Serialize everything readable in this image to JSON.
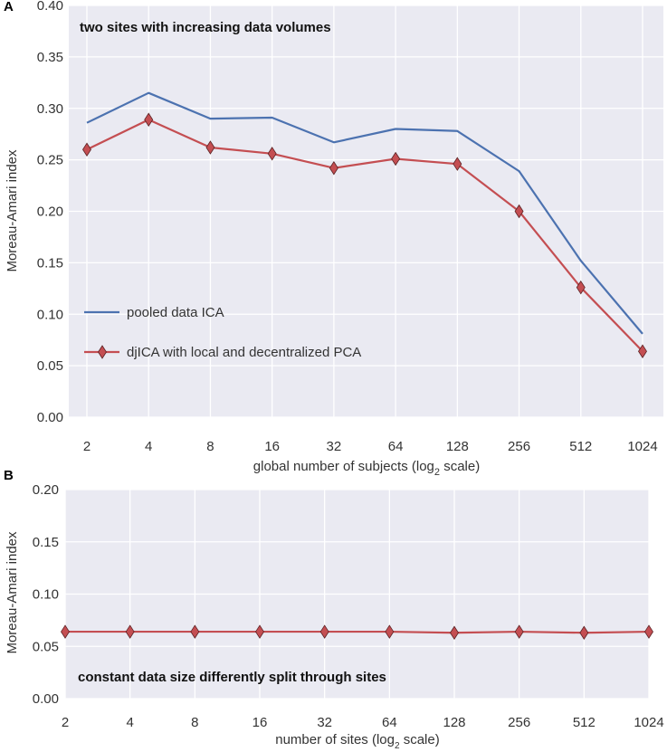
{
  "chart_data": [
    {
      "panel_letter": "A",
      "type": "line",
      "title": "two sites with increasing data volumes",
      "xlabel": "global number of subjects (log",
      "xlabel_sub": "2",
      "xlabel_suffix": " scale)",
      "ylabel": "Moreau-Amari index",
      "ylim": [
        0,
        0.4
      ],
      "yticks": [
        "0.00",
        "0.05",
        "0.10",
        "0.15",
        "0.20",
        "0.25",
        "0.30",
        "0.35",
        "0.40"
      ],
      "categories": [
        "2",
        "4",
        "8",
        "16",
        "32",
        "64",
        "128",
        "256",
        "512",
        "1024"
      ],
      "grid": true,
      "legend_position": "center-left",
      "series": [
        {
          "name": "pooled data ICA",
          "color": "#4c72b0",
          "marker": "none",
          "values": [
            0.286,
            0.315,
            0.29,
            0.291,
            0.267,
            0.28,
            0.278,
            0.239,
            0.152,
            0.081
          ]
        },
        {
          "name": "djICA with local and decentralized PCA",
          "color": "#c44e52",
          "marker": "diamond",
          "values": [
            0.26,
            0.289,
            0.262,
            0.256,
            0.242,
            0.251,
            0.246,
            0.2,
            0.126,
            0.064
          ]
        }
      ]
    },
    {
      "panel_letter": "B",
      "type": "line",
      "title": "constant data size differently split through sites",
      "xlabel": "number of sites (log",
      "xlabel_sub": "2",
      "xlabel_suffix": " scale)",
      "ylabel": "Moreau-Amari index",
      "ylim": [
        0,
        0.2
      ],
      "yticks": [
        "0.00",
        "0.05",
        "0.10",
        "0.15",
        "0.20"
      ],
      "categories": [
        "2",
        "4",
        "8",
        "16",
        "32",
        "64",
        "128",
        "256",
        "512",
        "1024"
      ],
      "grid": true,
      "series": [
        {
          "name": "djICA",
          "color": "#c44e52",
          "marker": "diamond",
          "values": [
            0.064,
            0.064,
            0.064,
            0.064,
            0.064,
            0.064,
            0.063,
            0.064,
            0.063,
            0.064
          ]
        }
      ]
    }
  ]
}
